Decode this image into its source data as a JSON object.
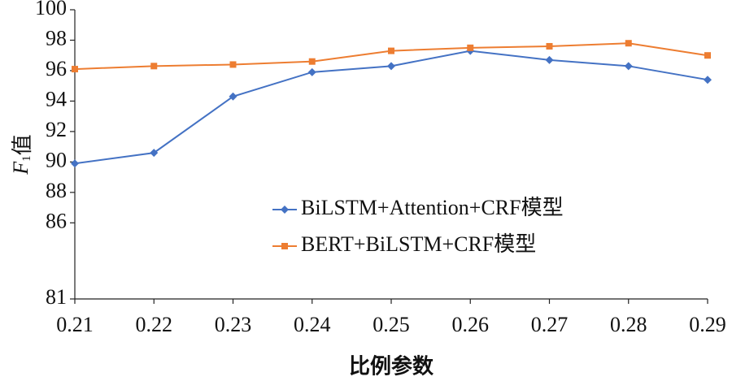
{
  "chart_data": {
    "type": "line",
    "ylabel": [
      "F",
      "1",
      "值"
    ],
    "xlabel": "比例参数",
    "x": [
      0.21,
      0.22,
      0.23,
      0.24,
      0.25,
      0.26,
      0.27,
      0.28,
      0.29
    ],
    "series": [
      {
        "name": "BiLSTM+Attention+CRF模型",
        "color": "#4472c4",
        "marker": "diamond",
        "values": [
          89.9,
          90.6,
          94.3,
          95.9,
          96.3,
          97.3,
          96.7,
          96.3,
          95.4
        ]
      },
      {
        "name": "BERT+BiLSTM+CRF模型",
        "color": "#ed7d31",
        "marker": "square",
        "values": [
          96.1,
          96.3,
          96.4,
          96.6,
          97.3,
          97.5,
          97.6,
          97.8,
          97.0
        ]
      }
    ],
    "xlim": [
      0.21,
      0.29
    ],
    "xticks": [
      0.21,
      0.22,
      0.23,
      0.24,
      0.25,
      0.26,
      0.27,
      0.28,
      0.29
    ],
    "ylim": [
      81,
      100
    ],
    "yticks": [
      81,
      86,
      88,
      90,
      92,
      94,
      96,
      98,
      100
    ],
    "grid": false
  }
}
